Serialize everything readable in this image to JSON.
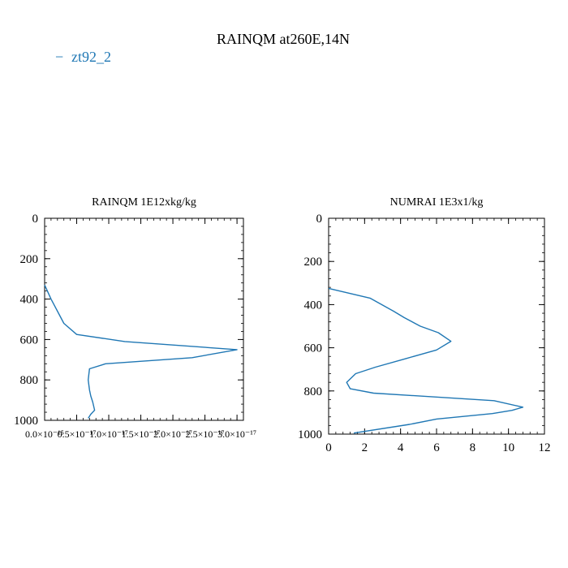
{
  "figure": {
    "title": "RAINQM at260E,14N",
    "legend_label": "zt92_2",
    "legend_marker": "−",
    "series_color": "#1f77b4"
  },
  "chart_data": [
    {
      "type": "line",
      "title": "RAINQM  1E12xkg/kg",
      "xlabel": "",
      "ylabel": "",
      "xlim": [
        0,
        3.1e-17
      ],
      "ylim": [
        1000,
        0
      ],
      "x_ticks": [
        0,
        5e-18,
        1e-17,
        1.5e-17,
        2e-17,
        2.5e-17,
        3e-17
      ],
      "x_tick_labels": [
        "0.0×10⁻¹⁵",
        "0.5×10⁻¹⁷",
        "1.0×10⁻¹⁷",
        "1.5×10⁻¹⁷",
        "2.0×10⁻¹⁷",
        "2.5×10⁻¹⁷",
        "3.0×10⁻¹⁷"
      ],
      "y_ticks": [
        0,
        200,
        400,
        600,
        800,
        1000
      ],
      "y_tick_labels": [
        "0",
        "200",
        "400",
        "600",
        "800",
        "1000"
      ],
      "grid": false,
      "series": [
        {
          "name": "zt92_2",
          "x": [
            0,
            1e-18,
            2e-18,
            3e-18,
            5e-18,
            1.25e-17,
            3e-17,
            2.3e-17,
            9.5e-18,
            7e-18,
            6.8e-18,
            7e-18,
            7.2e-18,
            7.5e-18,
            7.8e-18,
            7.2e-18,
            6.8e-18
          ],
          "y": [
            330,
            400,
            460,
            520,
            575,
            610,
            650,
            690,
            720,
            745,
            800,
            850,
            880,
            910,
            950,
            970,
            990
          ]
        }
      ]
    },
    {
      "type": "line",
      "title": "NUMRAI  1E3x1/kg",
      "xlabel": "",
      "ylabel": "",
      "xlim": [
        0,
        12
      ],
      "ylim": [
        1000,
        0
      ],
      "x_ticks": [
        0,
        2,
        4,
        6,
        8,
        10,
        12
      ],
      "x_tick_labels": [
        "0",
        "2",
        "4",
        "6",
        "8",
        "10",
        "12"
      ],
      "y_ticks": [
        0,
        200,
        400,
        600,
        800,
        1000
      ],
      "y_tick_labels": [
        "0",
        "200",
        "400",
        "600",
        "800",
        "1000"
      ],
      "grid": false,
      "series": [
        {
          "name": "zt92_2",
          "x": [
            0,
            2.3,
            3.6,
            4.2,
            5.1,
            6.1,
            6.8,
            6.0,
            4.3,
            2.6,
            1.5,
            1.0,
            1.2,
            2.5,
            9.2,
            10.8,
            10.2,
            9.1,
            6.0,
            4.5,
            1.4
          ],
          "y": [
            325,
            370,
            430,
            460,
            500,
            530,
            570,
            610,
            650,
            690,
            720,
            760,
            790,
            810,
            845,
            875,
            890,
            905,
            930,
            955,
            995
          ]
        }
      ]
    }
  ]
}
